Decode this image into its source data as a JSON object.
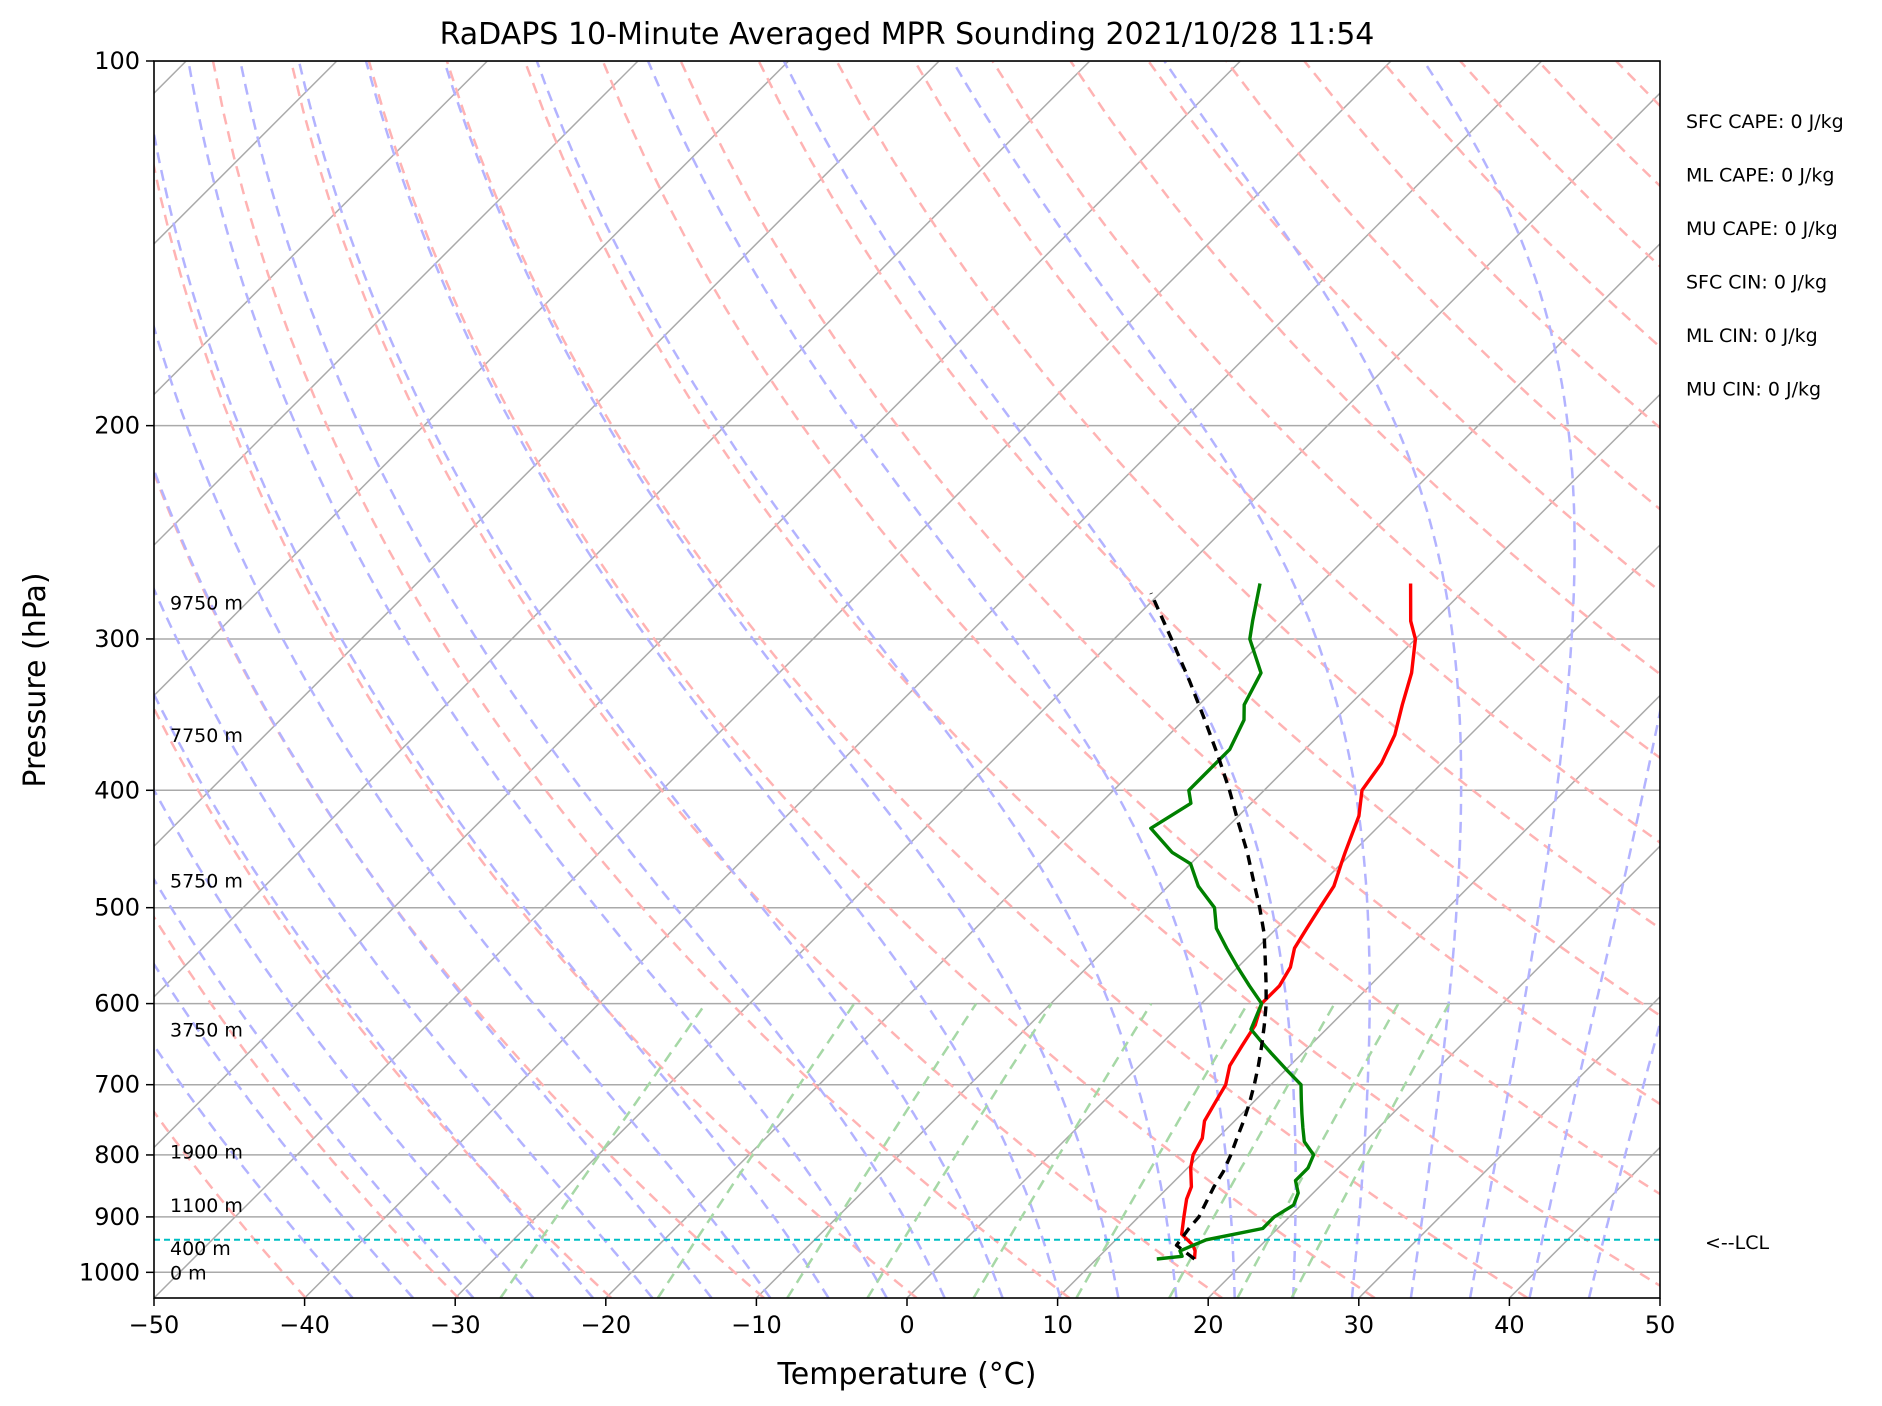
{
  "chart_data": {
    "type": "line",
    "title": "RaDAPS 10-Minute Averaged MPR Sounding 2021/10/28 11:54",
    "xlabel": "Temperature (°C)",
    "ylabel": "Pressure (hPa)",
    "xlim": [
      -50,
      50
    ],
    "ylim_pressure": [
      1050,
      100
    ],
    "y_scale": "log",
    "x_ticks": [
      "−50",
      "−40",
      "−30",
      "−20",
      "−10",
      "0",
      "10",
      "20",
      "30",
      "40",
      "50"
    ],
    "y_ticks": [
      "100",
      "200",
      "300",
      "400",
      "500",
      "600",
      "700",
      "800",
      "900",
      "1000"
    ],
    "grid": true,
    "skew_t": true,
    "series": [
      {
        "color": "#ff0000",
        "pressure": [
          975,
          960,
          950,
          930,
          900,
          870,
          850,
          820,
          800,
          775,
          750,
          725,
          700,
          675,
          650,
          625,
          600,
          580,
          560,
          540,
          520,
          500,
          480,
          460,
          450,
          420,
          400,
          380,
          360,
          340,
          320,
          300,
          290,
          270
        ],
        "values": [
          16.5,
          16,
          15.5,
          14,
          13,
          12,
          11.5,
          10.2,
          9.5,
          9,
          8,
          7.5,
          7,
          6,
          5.5,
          5,
          4,
          4,
          3.5,
          2.5,
          2,
          1.5,
          1,
          0,
          -0.5,
          -2,
          -3.5,
          -4,
          -5,
          -6.5,
          -8,
          -10,
          -11.5,
          -14
        ]
      },
      {
        "color": "#008000",
        "pressure": [
          975,
          970,
          960,
          950,
          940,
          930,
          920,
          900,
          880,
          860,
          840,
          820,
          800,
          780,
          760,
          740,
          720,
          700,
          680,
          660,
          650,
          630,
          600,
          580,
          560,
          540,
          520,
          500,
          480,
          460,
          450,
          430,
          410,
          400,
          390,
          370,
          350,
          340,
          320,
          300,
          290,
          270
        ],
        "values": [
          14,
          15.5,
          15,
          15.5,
          16,
          17.5,
          19,
          19,
          19.5,
          19,
          18,
          18,
          17.5,
          16,
          15,
          14,
          13,
          12,
          10,
          8,
          7,
          5,
          4,
          2,
          0,
          -2,
          -4,
          -5.5,
          -8,
          -10,
          -12,
          -15,
          -14,
          -15,
          -15,
          -15,
          -16,
          -17,
          -18,
          -21,
          -22,
          -24
        ]
      },
      {
        "color": "#000000",
        "style": "dashed",
        "pressure": [
          975,
          950,
          940,
          920,
          900,
          875,
          850,
          825,
          800,
          775,
          750,
          725,
          700,
          675,
          650,
          625,
          600,
          575,
          550,
          525,
          500,
          475,
          450,
          425,
          400,
          375,
          350,
          325,
          300,
          275
        ],
        "values": [
          16.5,
          14.4,
          14.3,
          14.1,
          14,
          13.5,
          13,
          12.6,
          12,
          11.3,
          10.6,
          9.8,
          8.9,
          7.9,
          6.8,
          5.6,
          4.3,
          2.8,
          1.2,
          -0.5,
          -2.5,
          -4.7,
          -7,
          -9.6,
          -12.3,
          -15.3,
          -18.6,
          -22.2,
          -26.2,
          -30.6
        ]
      }
    ],
    "lcl_pressure": 940,
    "lcl_label": "<--LCL",
    "height_labels": [
      {
        "text": "0 m",
        "pressure": 1000
      },
      {
        "text": "400 m",
        "pressure": 955
      },
      {
        "text": "1100 m",
        "pressure": 880
      },
      {
        "text": "1900 m",
        "pressure": 795
      },
      {
        "text": "3750 m",
        "pressure": 630
      },
      {
        "text": "5750 m",
        "pressure": 475
      },
      {
        "text": "7750 m",
        "pressure": 360
      },
      {
        "text": "9750 m",
        "pressure": 280
      }
    ],
    "indices": [
      "SFC CAPE: 0 J/kg",
      "ML CAPE: 0 J/kg",
      "MU CAPE: 0 J/kg",
      "SFC CIN: 0 J/kg",
      "ML CIN: 0 J/kg",
      "MU CIN: 0 J/kg"
    ],
    "colors": {
      "temperature": "#ff0000",
      "dewpoint": "#008000",
      "parcel": "#000000",
      "lcl": "#00bfc4",
      "dry_adiabat": "#ffb3b3",
      "moist_adiabat": "#b3b3ff",
      "mixing_ratio": "#a6d8a6",
      "isotherm": "#aaaaaa"
    }
  }
}
